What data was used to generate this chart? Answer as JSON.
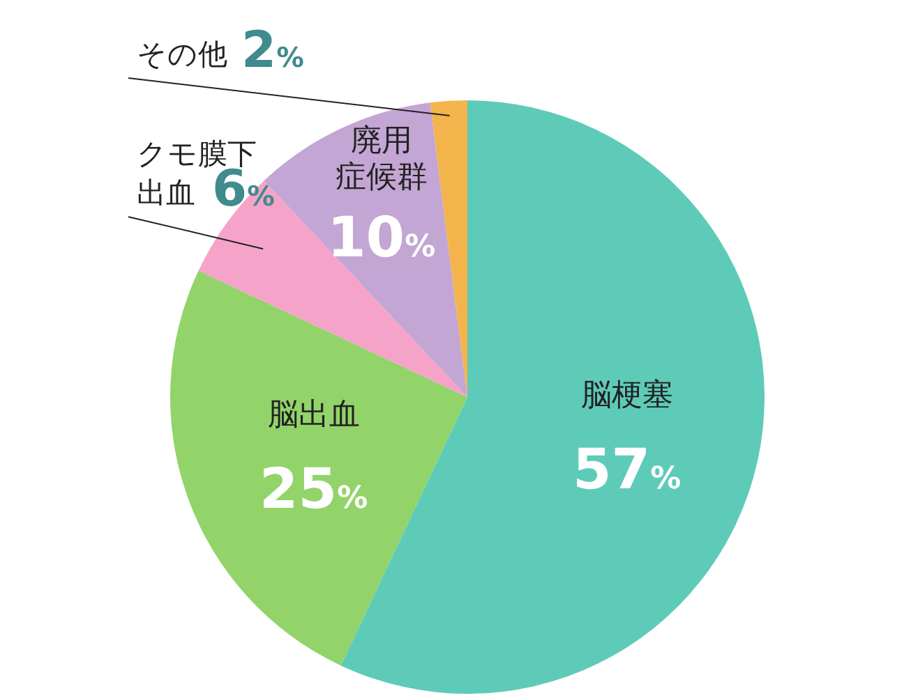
{
  "chart_data": {
    "type": "pie",
    "categories": [
      "脳梗塞",
      "脳出血",
      "クモ膜下出血",
      "廃用症候群",
      "その他"
    ],
    "values": [
      57,
      25,
      6,
      10,
      2
    ],
    "colors": [
      "#5ecbb8",
      "#92d36a",
      "#f6a3c9",
      "#c3a6d3",
      "#f4b44c"
    ],
    "value_labels": [
      "57%",
      "25%",
      "6%",
      "10%",
      "2%"
    ]
  }
}
